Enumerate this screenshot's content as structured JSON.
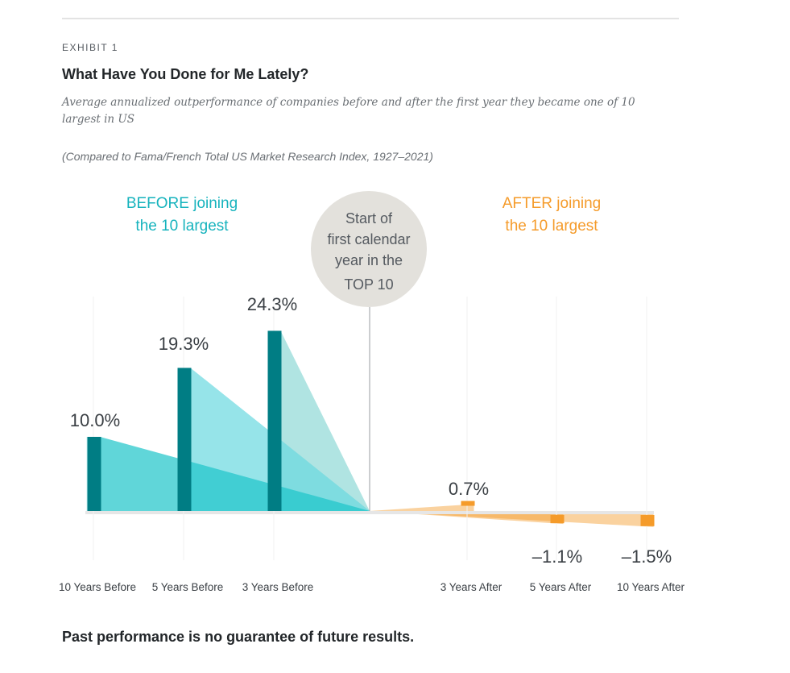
{
  "header": {
    "exhibit": "EXHIBIT 1",
    "title": "What Have You Done for Me Lately?",
    "subtitle": "Average annualized outperformance of companies before and after the first year they became one of 10 largest in US",
    "compared": "(Compared to Fama/French Total US Market Research Index, 1927–2021)"
  },
  "annotations": {
    "before_line1": "BEFORE joining",
    "before_line2": "the 10 largest",
    "after_line1": "AFTER joining",
    "after_line2": "the 10 largest",
    "center_lines": [
      "Start of",
      "first calendar",
      "year in the",
      "TOP 10"
    ]
  },
  "colors": {
    "teal_dark": "#007d84",
    "orange": "#f59b2a",
    "before_text": "#16b3bd",
    "after_text": "#f59b2a",
    "circle": "#e3e1dc",
    "baseline": "#e6e6e6"
  },
  "chart_data": {
    "type": "bar",
    "categories": [
      "10 Years Before",
      "5 Years Before",
      "3 Years Before",
      "3 Years After",
      "5 Years After",
      "10 Years After"
    ],
    "values": [
      10.0,
      19.3,
      24.3,
      0.7,
      -1.1,
      -1.5
    ],
    "labels": [
      "10.0%",
      "19.3%",
      "24.3%",
      "0.7%",
      "–1.1%",
      "–1.5%"
    ],
    "title": "What Have You Done for Me Lately?",
    "ylim": [
      -2,
      25
    ],
    "grid": false
  },
  "footer": {
    "note": "Past performance is no guarantee of future results."
  }
}
